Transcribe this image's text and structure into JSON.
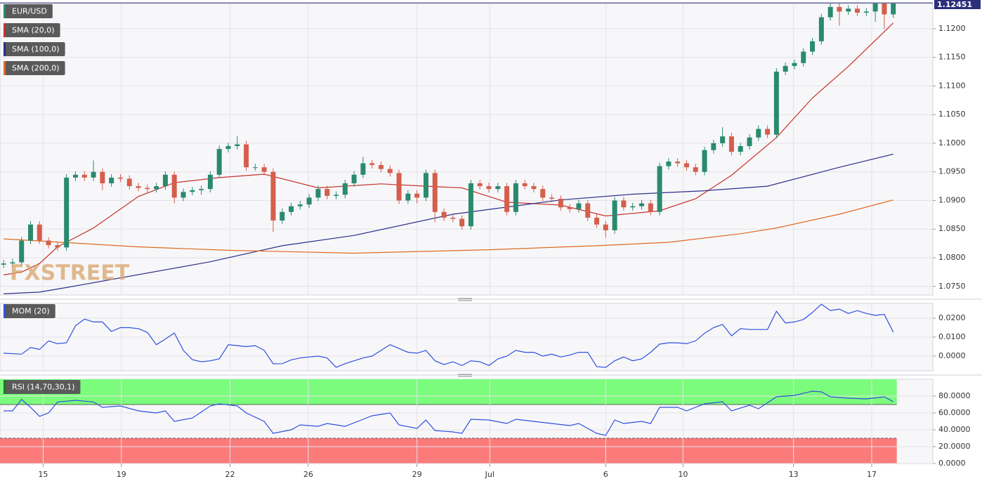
{
  "chart_data": [
    {
      "type": "candlestick",
      "title": "EUR/USD",
      "watermark": "FXSTREET",
      "up_color": "#2a8a6e",
      "down_color": "#d55e4c",
      "xlim": [
        -0.4,
        103.4
      ],
      "ylim": [
        1.0735,
        1.1244
      ],
      "yticks": [
        {
          "value": 1.075,
          "label": "1.0750"
        },
        {
          "value": 1.08,
          "label": "1.0800"
        },
        {
          "value": 1.085,
          "label": "1.0850"
        },
        {
          "value": 1.09,
          "label": "1.0900"
        },
        {
          "value": 1.095,
          "label": "1.0950"
        },
        {
          "value": 1.1,
          "label": "1.1000"
        },
        {
          "value": 1.105,
          "label": "1.1050"
        },
        {
          "value": 1.11,
          "label": "1.1100"
        },
        {
          "value": 1.115,
          "label": "1.1150"
        },
        {
          "value": 1.12,
          "label": "1.1200"
        }
      ],
      "last_price": 1.12451,
      "last_price_color": "#2c2f7c",
      "x": [
        0,
        1,
        2,
        3,
        4,
        5,
        6,
        7,
        8,
        9,
        10,
        11,
        12,
        13,
        14,
        15,
        16,
        17,
        18,
        19,
        20,
        21,
        22,
        23,
        24,
        25,
        26,
        27,
        28,
        29,
        30,
        31,
        32,
        33,
        34,
        35,
        36,
        37,
        38,
        39,
        40,
        41,
        42,
        43,
        44,
        45,
        46,
        47,
        48,
        49,
        50,
        51,
        52,
        53,
        54,
        55,
        56,
        57,
        58,
        59,
        60,
        61,
        62,
        63,
        64,
        65,
        66,
        67,
        68,
        69,
        70,
        71,
        72,
        73,
        74,
        75,
        76,
        77,
        78,
        79,
        80,
        81,
        82,
        83,
        84,
        85,
        86,
        87,
        88,
        89,
        90,
        91,
        92,
        93,
        94,
        95,
        96,
        97,
        98,
        99
      ],
      "open": [
        1.0788,
        1.079,
        1.0792,
        1.083,
        1.0858,
        1.083,
        1.0822,
        1.0818,
        1.094,
        1.0945,
        1.094,
        1.095,
        1.093,
        1.094,
        1.0938,
        1.0925,
        1.0922,
        1.092,
        1.0925,
        1.0945,
        1.0905,
        1.0915,
        1.0918,
        1.092,
        1.0945,
        1.099,
        1.0995,
        1.0998,
        1.0958,
        1.0958,
        1.095,
        1.0865,
        1.088,
        1.089,
        1.0893,
        1.0905,
        1.092,
        1.0908,
        1.091,
        1.093,
        1.0945,
        1.0965,
        1.0962,
        1.0955,
        1.0948,
        1.09,
        1.0912,
        1.0905,
        1.0948,
        1.088,
        1.087,
        1.0868,
        1.0855,
        1.093,
        1.0925,
        1.092,
        1.0925,
        1.088,
        1.093,
        1.0925,
        1.092,
        1.0905,
        1.0903,
        1.0888,
        1.0885,
        1.0895,
        1.087,
        1.0858,
        1.0848,
        1.09,
        1.0888,
        1.089,
        1.0895,
        1.088,
        1.096,
        1.0968,
        1.0965,
        1.0958,
        1.095,
        1.0988,
        1.1,
        1.1012,
        1.0985,
        1.0995,
        1.101,
        1.1025,
        1.1015,
        1.1125,
        1.1135,
        1.114,
        1.116,
        1.1178,
        1.122,
        1.1238,
        1.123,
        1.1235,
        1.1228,
        1.123,
        1.1244,
        1.1225
      ],
      "high": [
        1.0796,
        1.0798,
        1.0836,
        1.0864,
        1.0864,
        1.0836,
        1.0828,
        1.0946,
        1.0951,
        1.0951,
        1.097,
        1.0956,
        1.0946,
        1.0946,
        1.0944,
        1.0931,
        1.0928,
        1.0931,
        1.0951,
        1.0951,
        1.0921,
        1.0924,
        1.0926,
        1.0951,
        1.0996,
        1.1001,
        1.1012,
        1.1004,
        1.0964,
        1.0964,
        1.0956,
        1.0886,
        1.0896,
        1.0899,
        1.0911,
        1.0926,
        1.0926,
        1.0916,
        1.0936,
        1.0951,
        1.0976,
        1.0971,
        1.0968,
        1.0961,
        1.0954,
        1.0918,
        1.0918,
        1.0954,
        1.0954,
        1.0886,
        1.0876,
        1.0874,
        1.0936,
        1.0936,
        1.0931,
        1.0931,
        1.0931,
        1.0936,
        1.0936,
        1.0931,
        1.0926,
        1.0911,
        1.0909,
        1.0894,
        1.0901,
        1.0901,
        1.0876,
        1.0864,
        1.0906,
        1.0906,
        1.0896,
        1.0901,
        1.0901,
        1.0966,
        1.0974,
        1.0974,
        1.0971,
        1.0964,
        1.0994,
        1.1006,
        1.1028,
        1.1018,
        1.1001,
        1.1016,
        1.1031,
        1.1031,
        1.1131,
        1.1141,
        1.1146,
        1.1166,
        1.1184,
        1.1226,
        1.1244,
        1.1244,
        1.1241,
        1.1241,
        1.1236,
        1.125,
        1.125,
        1.1251
      ],
      "low": [
        1.0782,
        1.0784,
        1.0786,
        1.0824,
        1.0824,
        1.0816,
        1.0812,
        1.0812,
        1.0934,
        1.0934,
        1.0934,
        1.0918,
        1.0924,
        1.0932,
        1.0919,
        1.0916,
        1.0914,
        1.0914,
        1.0919,
        1.0895,
        1.0899,
        1.0909,
        1.091,
        1.0914,
        1.0939,
        1.0984,
        1.0989,
        1.0952,
        1.0952,
        1.0944,
        1.0845,
        1.0859,
        1.0874,
        1.0884,
        1.0887,
        1.0899,
        1.0902,
        1.0902,
        1.0904,
        1.0924,
        1.0939,
        1.0956,
        1.0949,
        1.0942,
        1.0894,
        1.0894,
        1.0895,
        1.0899,
        1.0862,
        1.0864,
        1.0862,
        1.0849,
        1.0849,
        1.0919,
        1.0914,
        1.0914,
        1.0874,
        1.0874,
        1.0919,
        1.0914,
        1.0899,
        1.0897,
        1.0882,
        1.0879,
        1.0879,
        1.0864,
        1.0852,
        1.0835,
        1.0842,
        1.0882,
        1.0882,
        1.0884,
        1.0874,
        1.0874,
        1.0954,
        1.0959,
        1.0952,
        1.0944,
        1.0944,
        1.0982,
        1.0994,
        1.0979,
        1.0979,
        1.0989,
        1.1004,
        1.1009,
        1.1009,
        1.1119,
        1.1129,
        1.1134,
        1.1154,
        1.1172,
        1.1214,
        1.1205,
        1.1224,
        1.1222,
        1.1222,
        1.1212,
        1.12,
        1.1219
      ],
      "close": [
        1.079,
        1.0792,
        1.083,
        1.0858,
        1.083,
        1.0822,
        1.0818,
        1.094,
        1.0945,
        1.094,
        1.095,
        1.093,
        1.094,
        1.0938,
        1.0925,
        1.0922,
        1.092,
        1.0925,
        1.0945,
        1.0905,
        1.0915,
        1.0918,
        1.092,
        1.0945,
        1.099,
        1.0995,
        1.0998,
        1.0958,
        1.0958,
        1.095,
        1.0865,
        1.088,
        1.089,
        1.0893,
        1.0905,
        1.092,
        1.0908,
        1.091,
        1.093,
        1.0945,
        1.0965,
        1.0962,
        1.0955,
        1.0948,
        1.09,
        1.0912,
        1.0905,
        1.0948,
        1.088,
        1.087,
        1.0868,
        1.0855,
        1.093,
        1.0925,
        1.092,
        1.0925,
        1.088,
        1.093,
        1.0925,
        1.092,
        1.0905,
        1.0903,
        1.0888,
        1.0885,
        1.0895,
        1.087,
        1.0858,
        1.0848,
        1.09,
        1.0888,
        1.089,
        1.0895,
        1.088,
        1.096,
        1.0968,
        1.0965,
        1.0958,
        1.095,
        1.0988,
        1.1,
        1.1012,
        1.0985,
        1.0995,
        1.101,
        1.1025,
        1.1015,
        1.1125,
        1.1135,
        1.114,
        1.116,
        1.1178,
        1.122,
        1.1238,
        1.123,
        1.1235,
        1.1228,
        1.123,
        1.1244,
        1.1225,
        1.1245
      ],
      "series": [
        {
          "name": "SMA (20,0)",
          "color": "#c9302c",
          "x": [
            0,
            2,
            4,
            6,
            10,
            15,
            19,
            24,
            29,
            35,
            42,
            47,
            51,
            56,
            62,
            67,
            71,
            73,
            77,
            81,
            86,
            90,
            94,
            99
          ],
          "values": [
            1.077,
            1.0775,
            1.079,
            1.0819,
            1.0852,
            1.0907,
            1.0931,
            1.094,
            1.0946,
            1.0922,
            1.0929,
            1.0925,
            1.0922,
            1.0897,
            1.0892,
            1.0873,
            1.0879,
            1.0882,
            1.0903,
            1.0944,
            1.101,
            1.1079,
            1.1134,
            1.121
          ]
        },
        {
          "name": "SMA (100,0)",
          "color": "#2c2f8c",
          "x": [
            0,
            4,
            7,
            23,
            31,
            39,
            50,
            62,
            70,
            78,
            85,
            93,
            99
          ],
          "values": [
            1.0737,
            1.074,
            1.0748,
            1.0793,
            1.0821,
            1.0839,
            1.0876,
            1.0901,
            1.0911,
            1.0917,
            1.0925,
            1.0958,
            1.0981
          ]
        },
        {
          "name": "SMA (200,0)",
          "color": "#e2691f",
          "x": [
            0,
            15,
            25,
            39,
            54,
            66,
            74,
            82,
            86,
            93,
            99
          ],
          "values": [
            1.0833,
            1.0819,
            1.0813,
            1.0808,
            1.0814,
            1.0821,
            1.0827,
            1.0842,
            1.0852,
            1.0876,
            1.0901
          ]
        }
      ]
    },
    {
      "type": "line",
      "title": "MOM (20)",
      "xlim": [
        -0.4,
        103.4
      ],
      "ylim": [
        -0.0078,
        0.0278
      ],
      "yticks": [
        {
          "value": 0,
          "label": "0.0000"
        },
        {
          "value": 0.01,
          "label": "0.0100"
        },
        {
          "value": 0.02,
          "label": "0.0200"
        }
      ],
      "series": [
        {
          "color": "#2f4fe0",
          "x": [
            0,
            2,
            3,
            4,
            5,
            6,
            7,
            8,
            9,
            10,
            11,
            12,
            13,
            14,
            15,
            16,
            17,
            18,
            19,
            20,
            21,
            22,
            23,
            24,
            25,
            26,
            27,
            28,
            29,
            30,
            31,
            32,
            33,
            34,
            35,
            36,
            37,
            38,
            39,
            40,
            41,
            42,
            43,
            44,
            45,
            46,
            47,
            48,
            49,
            50,
            51,
            52,
            53,
            54,
            55,
            56,
            57,
            58,
            59,
            60,
            61,
            62,
            63,
            64,
            65,
            66,
            67,
            68,
            69,
            70,
            71,
            72,
            73,
            74,
            75,
            76,
            77,
            78,
            79,
            80,
            81,
            82,
            83,
            84,
            85,
            86,
            87,
            88,
            89,
            90,
            91,
            92,
            93,
            94,
            95,
            96,
            97,
            98,
            99
          ],
          "values": [
            0.0015,
            0.001,
            0.0045,
            0.0035,
            0.008,
            0.0065,
            0.007,
            0.016,
            0.0195,
            0.018,
            0.018,
            0.013,
            0.015,
            0.015,
            0.0145,
            0.0125,
            0.006,
            0.009,
            0.0122,
            0.003,
            -0.0019,
            -0.003,
            -0.0025,
            -0.0015,
            0.006,
            0.0055,
            0.005,
            0.0055,
            0.003,
            -0.0041,
            -0.004,
            -0.002,
            -0.001,
            -0.0005,
            0.0,
            -0.001,
            -0.006,
            -0.004,
            -0.0025,
            -0.001,
            0.0,
            0.003,
            0.006,
            0.004,
            0.002,
            0.0015,
            0.003,
            -0.0025,
            -0.0045,
            -0.003,
            -0.005,
            -0.0025,
            -0.003,
            -0.005,
            -0.0015,
            0.0,
            0.003,
            0.002,
            0.002,
            0.0,
            0.001,
            -0.0005,
            0.0005,
            0.002,
            0.002,
            -0.0056,
            -0.006,
            -0.0025,
            -0.0005,
            -0.0025,
            -0.0015,
            0.002,
            0.0063,
            0.007,
            0.007,
            0.0065,
            0.008,
            0.012,
            0.015,
            0.0167,
            0.0107,
            0.0145,
            0.014,
            0.014,
            0.014,
            0.0237,
            0.0174,
            0.018,
            0.0193,
            0.023,
            0.0274,
            0.024,
            0.0248,
            0.0225,
            0.024,
            0.0225,
            0.0215,
            0.022,
            0.0126
          ]
        }
      ]
    },
    {
      "type": "line",
      "title": "RSI (14,70,30,1)",
      "title_color": "#1f7a1f",
      "xlim": [
        -0.4,
        103.4
      ],
      "ylim": [
        0,
        100
      ],
      "yticks": [
        {
          "value": 0,
          "label": "0.0000"
        },
        {
          "value": 20,
          "label": "20.0000"
        },
        {
          "value": 40,
          "label": "40.0000"
        },
        {
          "value": 60,
          "label": "60.0000"
        },
        {
          "value": 80,
          "label": "80.0000"
        }
      ],
      "bands": [
        {
          "from": 70,
          "to": 100,
          "color": "#7cfc7c"
        },
        {
          "from": 0,
          "to": 30,
          "color": "#fb7b7b"
        }
      ],
      "xticks": [
        {
          "value": 4.4,
          "label": "15"
        },
        {
          "value": 13.1,
          "label": "19"
        },
        {
          "value": 25.2,
          "label": "22"
        },
        {
          "value": 33.9,
          "label": "26"
        },
        {
          "value": 46.0,
          "label": "29"
        },
        {
          "value": 54.1,
          "label": "Jul"
        },
        {
          "value": 67.0,
          "label": "6"
        },
        {
          "value": 75.6,
          "label": "10"
        },
        {
          "value": 87.9,
          "label": "13"
        },
        {
          "value": 96.6,
          "label": "17"
        }
      ],
      "series": [
        {
          "color": "#2f4fe0",
          "x": [
            0,
            1,
            2,
            3,
            4,
            5,
            6,
            8,
            10,
            11,
            13,
            15,
            17,
            18,
            19,
            21,
            23,
            24,
            26,
            27,
            29,
            30,
            32,
            33,
            35,
            36,
            38,
            40,
            41,
            43,
            44,
            46,
            47,
            48,
            50,
            51,
            52,
            54,
            56,
            57,
            59,
            61,
            63,
            64,
            66,
            67,
            68,
            69,
            71,
            72,
            73,
            75,
            76,
            78,
            80,
            81,
            83,
            84,
            86,
            88,
            90,
            91,
            92,
            94,
            96,
            98,
            99
          ],
          "values": [
            62.5,
            62.5,
            76,
            66.7,
            56,
            60,
            73,
            75,
            73,
            66.7,
            68.3,
            62.5,
            60,
            62.5,
            50,
            54,
            68.3,
            70.8,
            68.3,
            60,
            50,
            35.8,
            40,
            45.8,
            44.2,
            47.5,
            44.2,
            52.5,
            56.7,
            60,
            45.8,
            41.7,
            51.7,
            39.2,
            37.5,
            35.8,
            52.5,
            51.7,
            47.5,
            52.5,
            50,
            47.5,
            45,
            47.5,
            35.8,
            33.3,
            51.7,
            47.5,
            50,
            47.5,
            66.7,
            66.7,
            62.5,
            70.8,
            73.3,
            62.5,
            69.2,
            65,
            79.2,
            80.8,
            85.8,
            85,
            79.2,
            77.5,
            76.7,
            79.2,
            73.3
          ]
        }
      ]
    }
  ]
}
